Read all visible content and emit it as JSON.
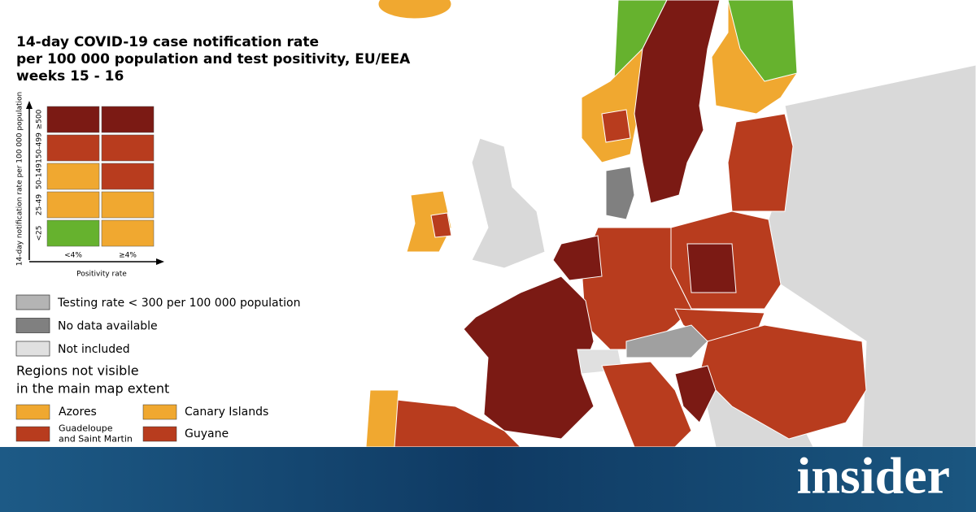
{
  "title": [
    "14-day COVID-19 case notification rate",
    "per 100 000 population and test positivity, EU/EEA",
    "weeks 15 - 16"
  ],
  "matrix": {
    "y_axis_label": "14-day notification rate per 100 000 population",
    "x_axis_label": "Positivity rate",
    "columns": [
      "<4%",
      "≥4%"
    ],
    "rows": [
      {
        "label": "≥500",
        "colors": [
          "#7b1a14",
          "#7b1a14"
        ]
      },
      {
        "label": "150-499",
        "colors": [
          "#b83c1e",
          "#b83c1e"
        ]
      },
      {
        "label": "50-149",
        "colors": [
          "#f0a830",
          "#b83c1e"
        ]
      },
      {
        "label": "25-49",
        "colors": [
          "#f0a830",
          "#f0a830"
        ]
      },
      {
        "label": "<25",
        "colors": [
          "#66b22e",
          "#f0a830"
        ]
      }
    ]
  },
  "legend": [
    {
      "label": "Testing rate < 300 per 100 000 population",
      "color": "#b4b4b4"
    },
    {
      "label": "No data available",
      "color": "#808080"
    },
    {
      "label": "Not included",
      "color": "#e0e0e0"
    }
  ],
  "regions_heading": [
    "Regions not visible",
    "in the main map extent"
  ],
  "regions": [
    {
      "label": [
        "Azores"
      ],
      "color": "#f0a830"
    },
    {
      "label": [
        "Canary Islands"
      ],
      "color": "#f0a830"
    },
    {
      "label": [
        "Guadeloupe",
        "and Saint Martin"
      ],
      "color": "#b83c1e"
    },
    {
      "label": [
        "Guyane"
      ],
      "color": "#b83c1e"
    }
  ],
  "brand": "insider"
}
